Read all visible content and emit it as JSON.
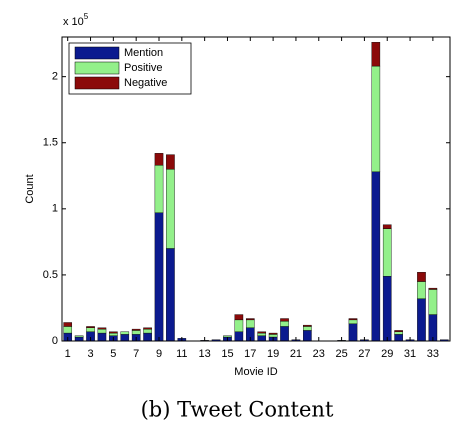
{
  "chart_data": {
    "type": "stacked_bar",
    "x_label": "Movie ID",
    "y_label": "Count",
    "y_multiplier": {
      "base": "x 10",
      "exponent": "5"
    },
    "caption": "(b) Tweet Content",
    "x": [
      1,
      2,
      3,
      4,
      5,
      6,
      7,
      8,
      9,
      10,
      11,
      12,
      13,
      14,
      15,
      16,
      17,
      18,
      19,
      20,
      21,
      22,
      23,
      24,
      25,
      26,
      27,
      28,
      29,
      30,
      31,
      32,
      33,
      34
    ],
    "xlim": [
      0.5,
      34.5
    ],
    "xticks": [
      1,
      3,
      5,
      7,
      9,
      11,
      13,
      15,
      17,
      19,
      21,
      23,
      25,
      27,
      29,
      31,
      33
    ],
    "ylim": [
      0,
      2.3
    ],
    "yticks": [
      0,
      0.5,
      1,
      1.5,
      2
    ],
    "legend_position": "upper-left",
    "series": [
      {
        "name": "Mention",
        "color": "#0b1a8f",
        "values": [
          0.06,
          0.03,
          0.07,
          0.06,
          0.04,
          0.05,
          0.05,
          0.06,
          0.97,
          0.7,
          0.02,
          0,
          0.005,
          0.01,
          0.03,
          0.07,
          0.1,
          0.04,
          0.03,
          0.11,
          0.01,
          0.08,
          0,
          0,
          0.005,
          0.13,
          0.01,
          1.28,
          0.49,
          0.05,
          0.01,
          0.32,
          0.2,
          0.01
        ]
      },
      {
        "name": "Positive",
        "color": "#93f08a",
        "values": [
          0.05,
          0.01,
          0.03,
          0.03,
          0.02,
          0.02,
          0.03,
          0.03,
          0.36,
          0.6,
          0,
          0,
          0,
          0,
          0.01,
          0.09,
          0.06,
          0.02,
          0.02,
          0.04,
          0,
          0.03,
          0,
          0,
          0,
          0.03,
          0,
          0.8,
          0.36,
          0.02,
          0,
          0.13,
          0.19,
          0
        ]
      },
      {
        "name": "Negative",
        "color": "#8b0a0a",
        "values": [
          0.03,
          0,
          0.01,
          0.01,
          0.01,
          0,
          0.01,
          0.01,
          0.09,
          0.11,
          0,
          0,
          0,
          0,
          0,
          0.04,
          0.01,
          0.01,
          0.01,
          0.02,
          0,
          0.01,
          0,
          0,
          0,
          0.01,
          0,
          0.18,
          0.03,
          0.01,
          0,
          0.07,
          0.01,
          0
        ]
      }
    ]
  }
}
